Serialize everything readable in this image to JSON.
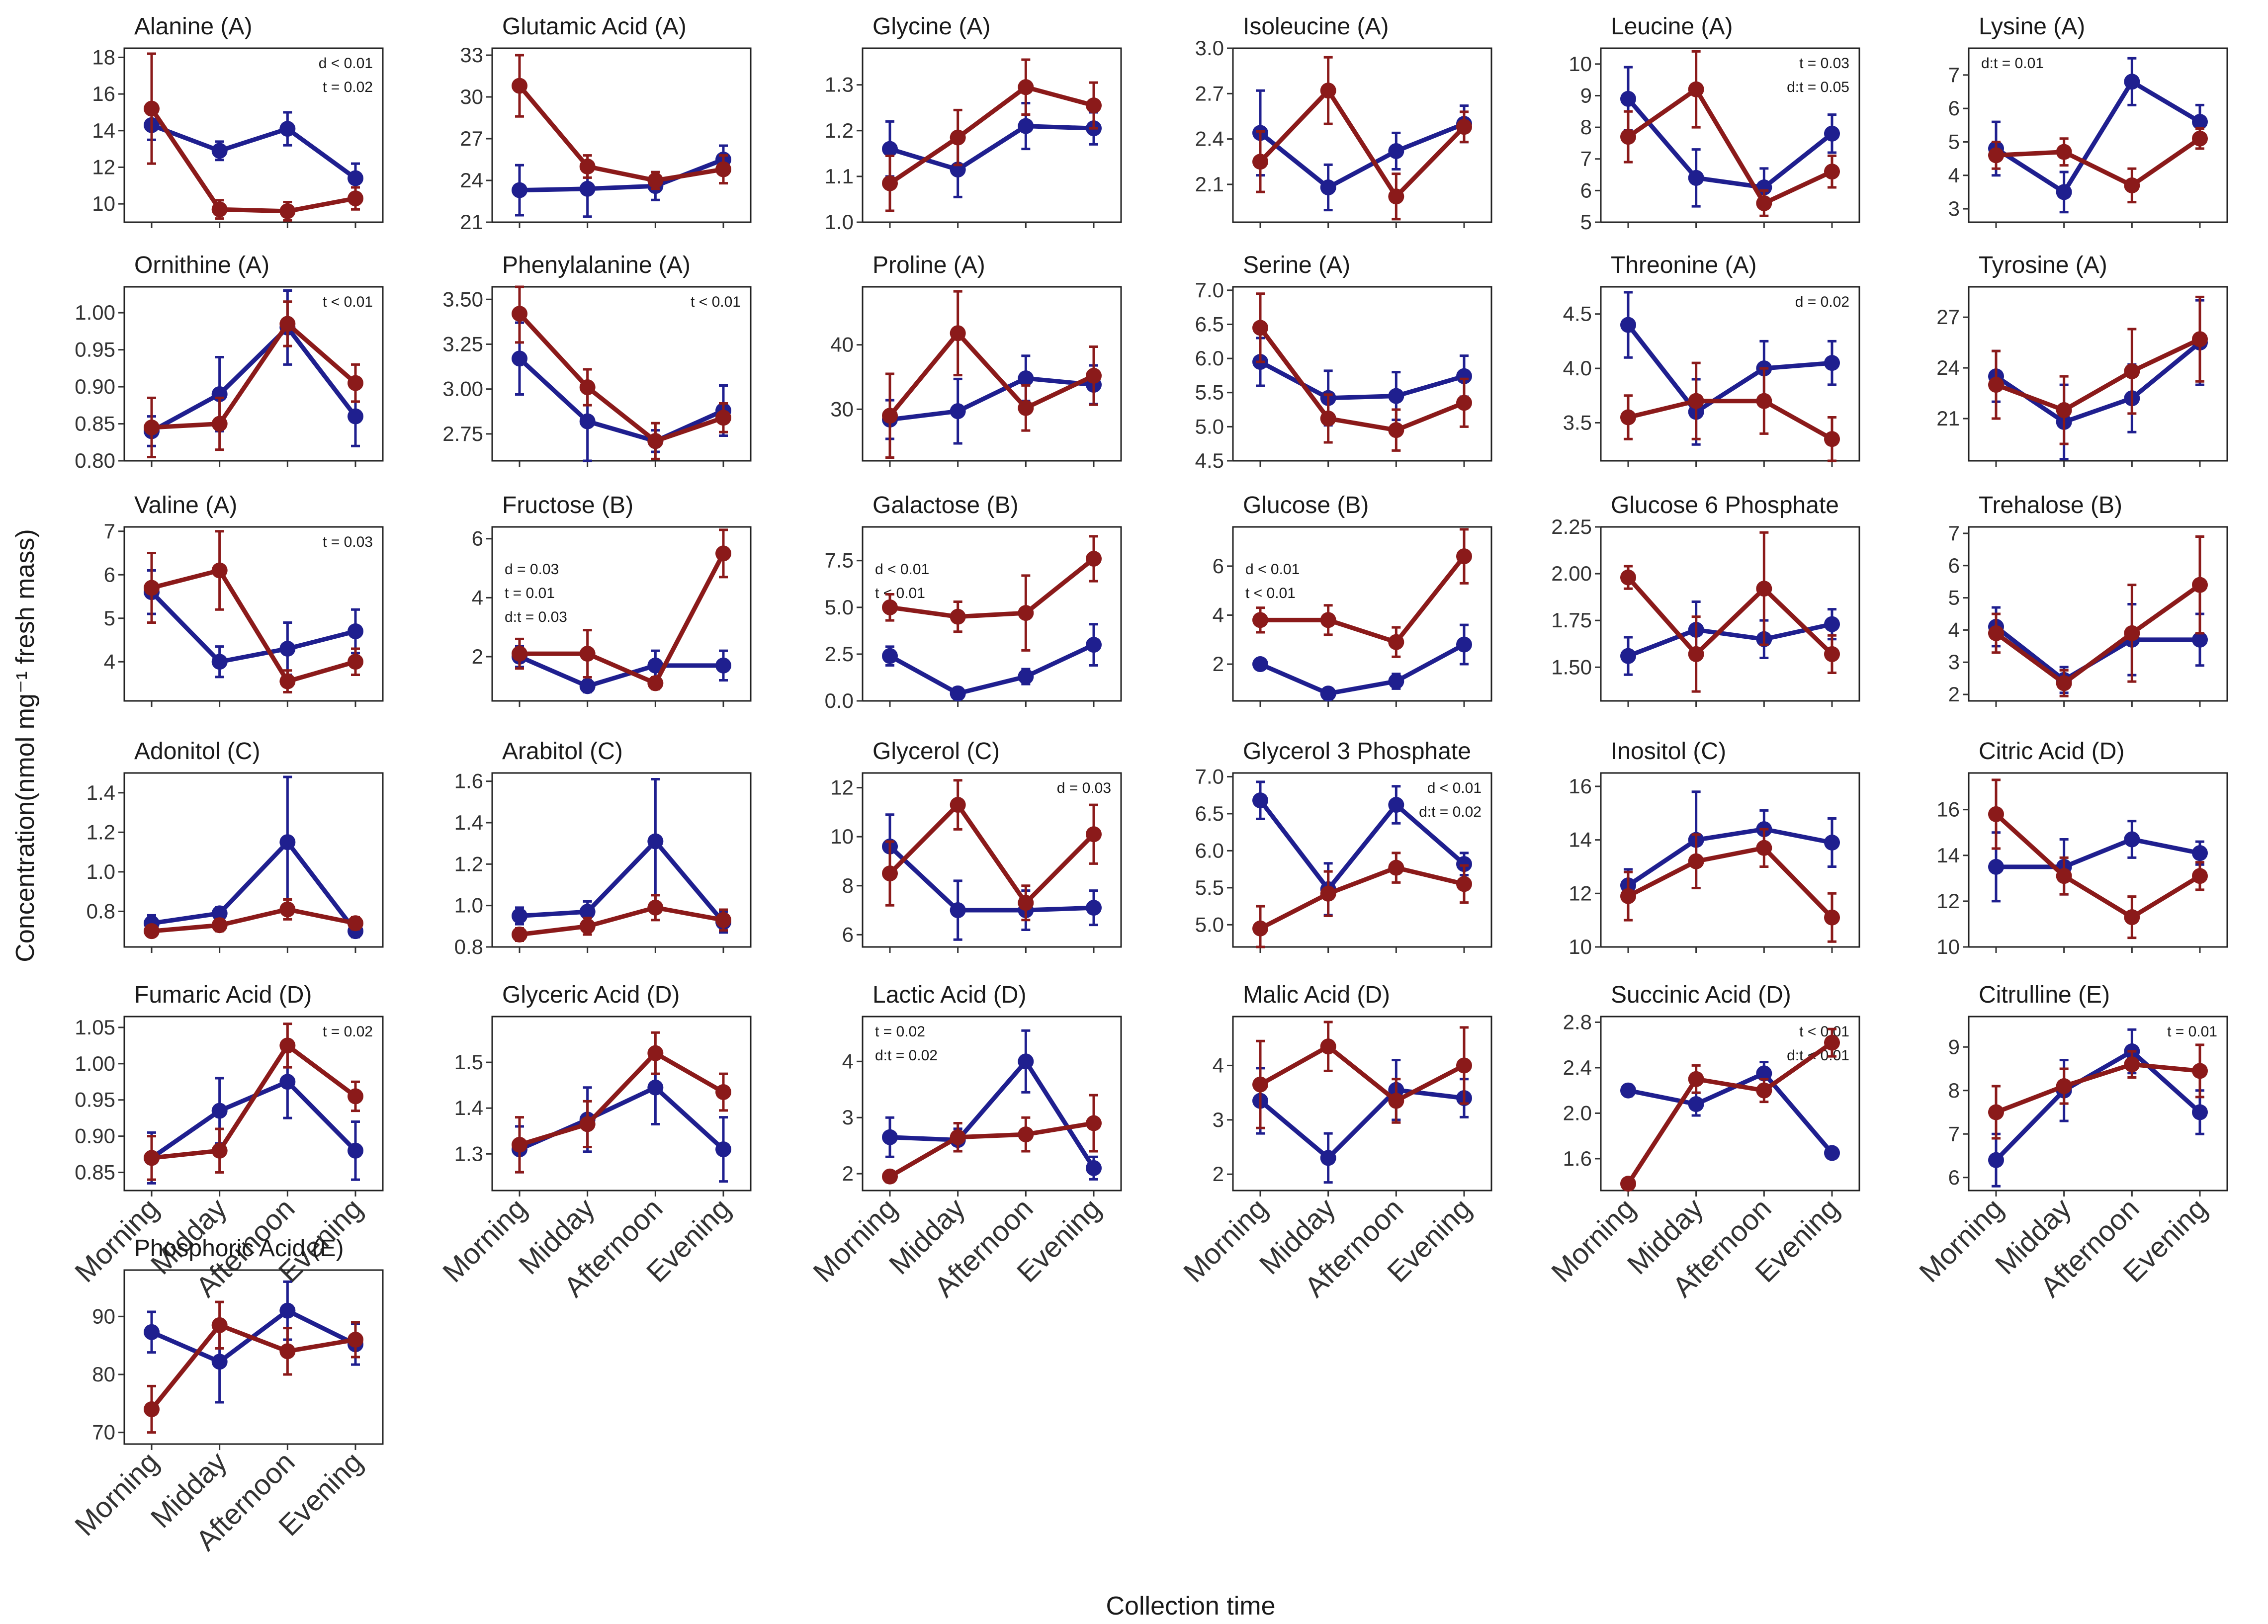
{
  "chart_data": {
    "type": "line",
    "xlabel": "Collection time",
    "ylabel": "Concentration(nmol mg⁻¹ fresh mass)",
    "categories": [
      "Morning",
      "Midday",
      "Afternoon",
      "Evening"
    ],
    "colors": {
      "blue_series": "#1f1f8f",
      "red_series": "#8b1a1a"
    },
    "panels": [
      {
        "title": "Alanine (A)",
        "yticks": [
          10,
          12,
          14,
          16,
          18
        ],
        "ylim": [
          9,
          18.5
        ],
        "blue": [
          14.3,
          12.9,
          14.1,
          11.4
        ],
        "blue_err": [
          0.8,
          0.5,
          0.9,
          0.8
        ],
        "red": [
          15.2,
          9.7,
          9.6,
          10.3
        ],
        "red_err": [
          3.0,
          0.5,
          0.5,
          0.6
        ],
        "annotations": [
          "d < 0.01",
          "t = 0.02"
        ]
      },
      {
        "title": "Glutamic Acid (A)",
        "yticks": [
          21,
          24,
          27,
          30,
          33
        ],
        "ylim": [
          21,
          33.5
        ],
        "blue": [
          23.3,
          23.4,
          23.6,
          25.5
        ],
        "blue_err": [
          1.8,
          2.0,
          1.0,
          1.0
        ],
        "red": [
          30.8,
          25.0,
          24.0,
          24.8
        ],
        "red_err": [
          2.2,
          0.8,
          0.6,
          1.0
        ],
        "annotations": []
      },
      {
        "title": "Glycine (A)",
        "yticks": [
          1.0,
          1.1,
          1.2,
          1.3
        ],
        "ylim": [
          1.0,
          1.38
        ],
        "blue": [
          1.16,
          1.115,
          1.21,
          1.205
        ],
        "blue_err": [
          0.06,
          0.06,
          0.05,
          0.035
        ],
        "red": [
          1.085,
          1.185,
          1.295,
          1.255
        ],
        "red_err": [
          0.06,
          0.06,
          0.06,
          0.05
        ],
        "annotations": []
      },
      {
        "title": "Isoleucine (A)",
        "yticks": [
          2.1,
          2.4,
          2.7,
          3.0
        ],
        "ylim": [
          1.85,
          3.0
        ],
        "blue": [
          2.44,
          2.08,
          2.32,
          2.5
        ],
        "blue_err": [
          0.28,
          0.15,
          0.12,
          0.12
        ],
        "red": [
          2.25,
          2.72,
          2.02,
          2.48
        ],
        "red_err": [
          0.2,
          0.22,
          0.15,
          0.1
        ],
        "annotations": []
      },
      {
        "title": "Leucine (A)",
        "yticks": [
          5,
          6,
          7,
          8,
          9,
          10
        ],
        "ylim": [
          5,
          10.5
        ],
        "blue": [
          8.9,
          6.4,
          6.1,
          7.8
        ],
        "blue_err": [
          1.0,
          0.9,
          0.6,
          0.6
        ],
        "red": [
          7.7,
          9.2,
          5.6,
          6.6
        ],
        "red_err": [
          0.8,
          1.2,
          0.4,
          0.5
        ],
        "annotations": [
          "t = 0.03",
          "d:t = 0.05"
        ]
      },
      {
        "title": "Lysine (A)",
        "yticks": [
          3,
          4,
          5,
          6,
          7
        ],
        "ylim": [
          2.6,
          7.8
        ],
        "blue": [
          4.8,
          3.5,
          6.8,
          5.6
        ],
        "blue_err": [
          0.8,
          0.6,
          0.7,
          0.5
        ],
        "red": [
          4.6,
          4.7,
          3.7,
          5.1
        ],
        "red_err": [
          0.4,
          0.4,
          0.5,
          0.3
        ],
        "annotations": [
          "d:t = 0.01"
        ]
      },
      {
        "title": "Ornithine (A)",
        "yticks": [
          0.8,
          0.85,
          0.9,
          0.95,
          1.0
        ],
        "ylim": [
          0.8,
          1.035
        ],
        "blue": [
          0.84,
          0.89,
          0.98,
          0.86
        ],
        "blue_err": [
          0.02,
          0.05,
          0.05,
          0.04
        ],
        "red": [
          0.845,
          0.85,
          0.985,
          0.905
        ],
        "red_err": [
          0.04,
          0.035,
          0.03,
          0.025
        ],
        "annotations": [
          "t < 0.01"
        ]
      },
      {
        "title": "Phenylalanine (A)",
        "yticks": [
          2.75,
          3.0,
          3.25,
          3.5
        ],
        "ylim": [
          2.6,
          3.57
        ],
        "blue": [
          3.17,
          2.82,
          2.71,
          2.88
        ],
        "blue_err": [
          0.2,
          0.22,
          0.06,
          0.14
        ],
        "red": [
          3.42,
          3.01,
          2.71,
          2.84
        ],
        "red_err": [
          0.16,
          0.1,
          0.1,
          0.08
        ],
        "annotations": [
          "t < 0.01"
        ]
      },
      {
        "title": "Proline (A)",
        "yticks": [
          30,
          40
        ],
        "ylim": [
          22,
          49
        ],
        "blue": [
          28.4,
          29.7,
          34.8,
          33.8
        ],
        "blue_err": [
          3.0,
          5.0,
          3.5,
          3.0
        ],
        "red": [
          29.0,
          41.8,
          30.2,
          35.2
        ],
        "red_err": [
          6.5,
          6.5,
          3.5,
          4.5
        ],
        "annotations": []
      },
      {
        "title": "Serine (A)",
        "yticks": [
          4.5,
          5.0,
          5.5,
          6.0,
          6.5,
          7.0
        ],
        "ylim": [
          4.5,
          7.05
        ],
        "blue": [
          5.95,
          5.42,
          5.45,
          5.74
        ],
        "blue_err": [
          0.35,
          0.4,
          0.35,
          0.3
        ],
        "red": [
          6.45,
          5.12,
          4.95,
          5.35
        ],
        "red_err": [
          0.5,
          0.35,
          0.3,
          0.35
        ],
        "annotations": []
      },
      {
        "title": "Threonine (A)",
        "yticks": [
          3.5,
          4.0,
          4.5
        ],
        "ylim": [
          3.15,
          4.75
        ],
        "blue": [
          4.4,
          3.6,
          4.0,
          4.05
        ],
        "blue_err": [
          0.3,
          0.3,
          0.25,
          0.2
        ],
        "red": [
          3.55,
          3.7,
          3.7,
          3.35
        ],
        "red_err": [
          0.2,
          0.35,
          0.3,
          0.2
        ],
        "annotations": [
          "d = 0.02"
        ]
      },
      {
        "title": "Tyrosine (A)",
        "yticks": [
          21,
          24,
          27
        ],
        "ylim": [
          18.5,
          28.8
        ],
        "blue": [
          23.5,
          20.8,
          22.2,
          25.5
        ],
        "blue_err": [
          1.5,
          2.2,
          2.0,
          2.5
        ],
        "red": [
          23.0,
          21.5,
          23.8,
          25.7
        ],
        "red_err": [
          2.0,
          2.0,
          2.5,
          2.5
        ],
        "annotations": []
      },
      {
        "title": "Valine (A)",
        "yticks": [
          4,
          5,
          6,
          7
        ],
        "ylim": [
          3.1,
          7.1
        ],
        "blue": [
          5.6,
          4.0,
          4.3,
          4.7
        ],
        "blue_err": [
          0.5,
          0.35,
          0.6,
          0.5
        ],
        "red": [
          5.7,
          6.1,
          3.55,
          4.0
        ],
        "red_err": [
          0.8,
          0.9,
          0.25,
          0.3
        ],
        "annotations": [
          "t = 0.03"
        ]
      },
      {
        "title": "Fructose (B)",
        "yticks": [
          2,
          4,
          6
        ],
        "ylim": [
          0.5,
          6.4
        ],
        "blue": [
          2.0,
          1.0,
          1.7,
          1.7
        ],
        "blue_err": [
          0.35,
          0.2,
          0.5,
          0.5
        ],
        "red": [
          2.1,
          2.1,
          1.1,
          5.5
        ],
        "red_err": [
          0.5,
          0.8,
          0.2,
          0.8
        ],
        "annotations": [
          "d = 0.03",
          "t = 0.01",
          "d:t = 0.03"
        ]
      },
      {
        "title": "Galactose (B)",
        "yticks": [
          0.0,
          2.5,
          5.0,
          7.5
        ],
        "ylim": [
          0,
          9.3
        ],
        "blue": [
          2.4,
          0.4,
          1.3,
          3.0
        ],
        "blue_err": [
          0.5,
          0.3,
          0.4,
          1.1
        ],
        "red": [
          5.0,
          4.5,
          4.7,
          7.6
        ],
        "red_err": [
          0.7,
          0.8,
          2.0,
          1.2
        ],
        "annotations": [
          "d < 0.01",
          "t < 0.01"
        ]
      },
      {
        "title": "Glucose (B)",
        "yticks": [
          2,
          4,
          6
        ],
        "ylim": [
          0.5,
          7.6
        ],
        "blue": [
          2.0,
          0.8,
          1.3,
          2.8
        ],
        "blue_err": [
          0.2,
          0.1,
          0.3,
          0.8
        ],
        "red": [
          3.8,
          3.8,
          2.9,
          6.4
        ],
        "red_err": [
          0.5,
          0.6,
          0.6,
          1.1
        ],
        "annotations": [
          "d < 0.01",
          "t < 0.01"
        ]
      },
      {
        "title": "Glucose 6 Phosphate",
        "yticks": [
          1.5,
          1.75,
          2.0,
          2.25
        ],
        "ylim": [
          1.32,
          2.25
        ],
        "blue": [
          1.56,
          1.7,
          1.65,
          1.73
        ],
        "blue_err": [
          0.1,
          0.15,
          0.1,
          0.08
        ],
        "red": [
          1.98,
          1.57,
          1.92,
          1.57
        ],
        "red_err": [
          0.06,
          0.2,
          0.3,
          0.1
        ],
        "annotations": []
      },
      {
        "title": "Trehalose (B)",
        "yticks": [
          2,
          3,
          4,
          5,
          6,
          7
        ],
        "ylim": [
          1.8,
          7.2
        ],
        "blue": [
          4.1,
          2.45,
          3.7,
          3.7
        ],
        "blue_err": [
          0.6,
          0.4,
          1.1,
          0.8
        ],
        "red": [
          3.9,
          2.35,
          3.9,
          5.4
        ],
        "red_err": [
          0.6,
          0.4,
          1.5,
          1.5
        ],
        "annotations": []
      },
      {
        "title": "Adonitol (C)",
        "yticks": [
          0.8,
          1.0,
          1.2,
          1.4
        ],
        "ylim": [
          0.62,
          1.5
        ],
        "blue": [
          0.74,
          0.79,
          1.15,
          0.7
        ],
        "blue_err": [
          0.04,
          0.03,
          0.33,
          0.03
        ],
        "red": [
          0.7,
          0.73,
          0.81,
          0.74
        ],
        "red_err": [
          0.02,
          0.03,
          0.05,
          0.03
        ],
        "annotations": []
      },
      {
        "title": "Arabitol (C)",
        "yticks": [
          0.8,
          1.0,
          1.2,
          1.4,
          1.6
        ],
        "ylim": [
          0.8,
          1.64
        ],
        "blue": [
          0.95,
          0.97,
          1.31,
          0.92
        ],
        "blue_err": [
          0.04,
          0.05,
          0.3,
          0.05
        ],
        "red": [
          0.86,
          0.9,
          0.99,
          0.93
        ],
        "red_err": [
          0.03,
          0.04,
          0.06,
          0.05
        ],
        "annotations": []
      },
      {
        "title": "Glycerol (C)",
        "yticks": [
          6,
          8,
          10,
          12
        ],
        "ylim": [
          5.5,
          12.6
        ],
        "blue": [
          9.6,
          7.0,
          7.0,
          7.1
        ],
        "blue_err": [
          1.3,
          1.2,
          0.8,
          0.7
        ],
        "red": [
          8.5,
          11.3,
          7.3,
          10.1
        ],
        "red_err": [
          1.3,
          1.0,
          0.7,
          1.2
        ],
        "annotations": [
          "d = 0.03"
        ]
      },
      {
        "title": "Glycerol 3 Phosphate",
        "yticks": [
          5.0,
          5.5,
          6.0,
          6.5,
          7.0
        ],
        "ylim": [
          4.7,
          7.05
        ],
        "blue": [
          6.68,
          5.48,
          6.62,
          5.82
        ],
        "blue_err": [
          0.25,
          0.35,
          0.25,
          0.15
        ],
        "red": [
          4.95,
          5.42,
          5.77,
          5.55
        ],
        "red_err": [
          0.3,
          0.3,
          0.2,
          0.25
        ],
        "annotations": [
          "d < 0.01",
          "d:t = 0.02"
        ]
      },
      {
        "title": "Inositol (C)",
        "yticks": [
          10,
          12,
          14,
          16
        ],
        "ylim": [
          10,
          16.5
        ],
        "blue": [
          12.3,
          14.0,
          14.4,
          13.9
        ],
        "blue_err": [
          0.6,
          1.8,
          0.7,
          0.9
        ],
        "red": [
          11.9,
          13.2,
          13.7,
          11.1
        ],
        "red_err": [
          0.9,
          1.0,
          0.7,
          0.9
        ],
        "annotations": []
      },
      {
        "title": "Citric Acid (D)",
        "yticks": [
          10,
          12,
          14,
          16
        ],
        "ylim": [
          10,
          17.6
        ],
        "blue": [
          13.5,
          13.5,
          14.7,
          14.1
        ],
        "blue_err": [
          1.5,
          1.2,
          0.8,
          0.5
        ],
        "red": [
          15.8,
          13.1,
          11.3,
          13.1
        ],
        "red_err": [
          1.5,
          0.8,
          0.9,
          0.6
        ],
        "annotations": []
      },
      {
        "title": "Fumaric Acid (D)",
        "yticks": [
          0.85,
          0.9,
          0.95,
          1.0,
          1.05
        ],
        "ylim": [
          0.825,
          1.065
        ],
        "blue": [
          0.87,
          0.935,
          0.975,
          0.88
        ],
        "blue_err": [
          0.035,
          0.045,
          0.05,
          0.04
        ],
        "red": [
          0.87,
          0.88,
          1.025,
          0.955
        ],
        "red_err": [
          0.03,
          0.03,
          0.03,
          0.02
        ],
        "annotations": [
          "t = 0.02"
        ]
      },
      {
        "title": "Glyceric Acid (D)",
        "yticks": [
          1.3,
          1.4,
          1.5
        ],
        "ylim": [
          1.22,
          1.6
        ],
        "blue": [
          1.31,
          1.375,
          1.445,
          1.31
        ],
        "blue_err": [
          0.05,
          0.07,
          0.08,
          0.07
        ],
        "red": [
          1.32,
          1.365,
          1.52,
          1.435
        ],
        "red_err": [
          0.06,
          0.05,
          0.045,
          0.04
        ],
        "annotations": []
      },
      {
        "title": "Lactic Acid (D)",
        "yticks": [
          2,
          3,
          4
        ],
        "ylim": [
          1.7,
          4.8
        ],
        "blue": [
          2.65,
          2.6,
          4.0,
          2.1
        ],
        "blue_err": [
          0.35,
          0.2,
          0.55,
          0.2
        ],
        "red": [
          1.95,
          2.65,
          2.7,
          2.9
        ],
        "red_err": [
          0.1,
          0.25,
          0.3,
          0.5
        ],
        "annotations": [
          "t = 0.02",
          "d:t = 0.02"
        ]
      },
      {
        "title": "Malic Acid (D)",
        "yticks": [
          2,
          3,
          4
        ],
        "ylim": [
          1.7,
          4.9
        ],
        "blue": [
          3.35,
          2.3,
          3.55,
          3.4
        ],
        "blue_err": [
          0.6,
          0.45,
          0.55,
          0.35
        ],
        "red": [
          3.65,
          4.35,
          3.35,
          4.0
        ],
        "red_err": [
          0.8,
          0.45,
          0.4,
          0.7
        ],
        "annotations": []
      },
      {
        "title": "Succinic Acid (D)",
        "yticks": [
          1.6,
          2.0,
          2.4,
          2.8
        ],
        "ylim": [
          1.32,
          2.85
        ],
        "blue": [
          2.2,
          2.08,
          2.35,
          1.65
        ],
        "blue_err": [
          0.05,
          0.1,
          0.1,
          0.02
        ],
        "red": [
          1.38,
          2.3,
          2.2,
          2.62
        ],
        "red_err": [
          0.02,
          0.12,
          0.1,
          0.12
        ],
        "annotations": [
          "t < 0.01",
          "d:t < 0.01"
        ]
      },
      {
        "title": "Citrulline (E)",
        "yticks": [
          6,
          7,
          8,
          9
        ],
        "ylim": [
          5.7,
          9.7
        ],
        "blue": [
          6.4,
          8.0,
          8.9,
          7.5
        ],
        "blue_err": [
          0.6,
          0.7,
          0.5,
          0.5
        ],
        "red": [
          7.5,
          8.1,
          8.6,
          8.45
        ],
        "red_err": [
          0.6,
          0.4,
          0.3,
          0.6
        ],
        "annotations": [
          "t = 0.01"
        ]
      },
      {
        "title": "Phosphoric Acid (E)",
        "yticks": [
          70,
          80,
          90
        ],
        "ylim": [
          68,
          98
        ],
        "blue": [
          87.3,
          82.2,
          91.0,
          85.2
        ],
        "blue_err": [
          3.5,
          7.0,
          5.0,
          3.5
        ],
        "red": [
          74.0,
          88.5,
          84.0,
          86.0
        ],
        "red_err": [
          4.0,
          4.0,
          4.0,
          3.0
        ],
        "annotations": []
      }
    ]
  }
}
